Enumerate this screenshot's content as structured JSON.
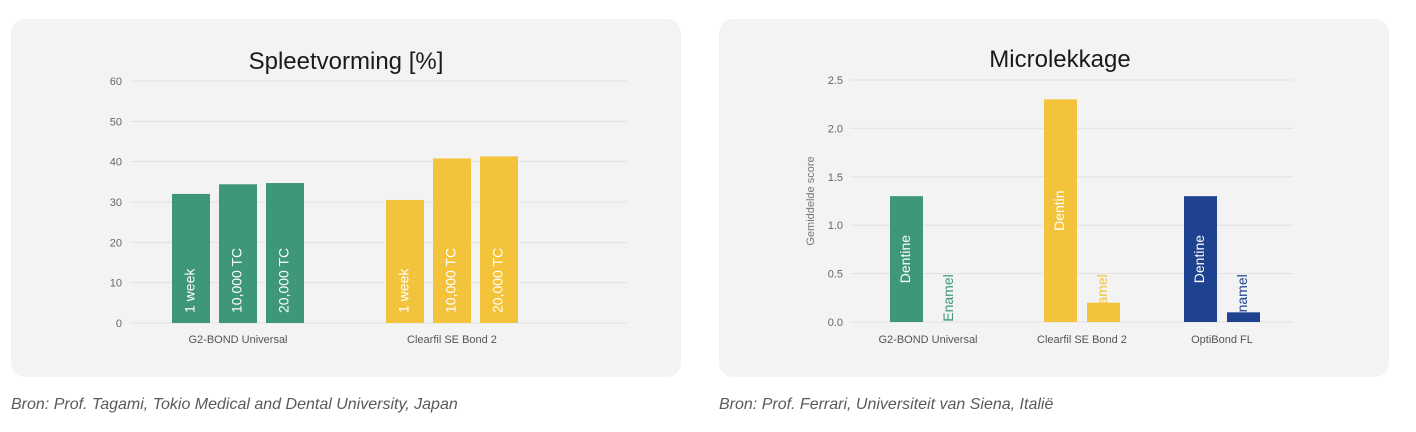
{
  "charts": {
    "left": {
      "source": "Bron: Prof. Tagami, Tokio Medical and Dental University, Japan"
    },
    "right": {
      "source": "Bron: Prof. Ferrari, Universiteit van Siena, Italië"
    }
  },
  "colors": {
    "green": "#3e977a",
    "yellow": "#f3c33c",
    "blue": "#1e428f",
    "panel": "#f3f3f3",
    "grid": "#e2e2e2",
    "tick": "#666666"
  },
  "chart_data": [
    {
      "type": "bar",
      "title": "Spleetvorming [%]",
      "xlabel": "",
      "ylabel": "",
      "ylim": [
        0,
        60
      ],
      "yticks": [
        "0",
        "10",
        "20",
        "30",
        "40",
        "50",
        "60"
      ],
      "grid": true,
      "categories": [
        "G2-BOND Universal",
        "Clearfil SE Bond 2"
      ],
      "bar_labels": [
        "1 week",
        "10,000 TC",
        "20,000 TC"
      ],
      "values": [
        [
          32,
          34.4,
          34.7
        ],
        [
          30.5,
          40.8,
          41.3
        ]
      ],
      "category_colors": [
        "#3e977a",
        "#f3c33c"
      ]
    },
    {
      "type": "bar",
      "title": "Microlekkage",
      "xlabel": "",
      "ylabel": "Gemiddelde score",
      "ylim": [
        0,
        2.5
      ],
      "yticks": [
        "0.0",
        "0.5",
        "1.0",
        "1.5",
        "2.0",
        "2.5"
      ],
      "grid": true,
      "categories": [
        "G2-BOND Universal",
        "Clearfil SE Bond 2",
        "OptiBond FL"
      ],
      "bar_labels": [
        [
          "Dentine",
          "Enamel"
        ],
        [
          "Dentin",
          "Enamel"
        ],
        [
          "Dentine",
          "Enamel"
        ]
      ],
      "values": [
        [
          1.3,
          0
        ],
        [
          2.3,
          0.2
        ],
        [
          1.3,
          0.1
        ]
      ],
      "category_colors": [
        "#3e977a",
        "#f3c33c",
        "#1e428f"
      ]
    }
  ]
}
